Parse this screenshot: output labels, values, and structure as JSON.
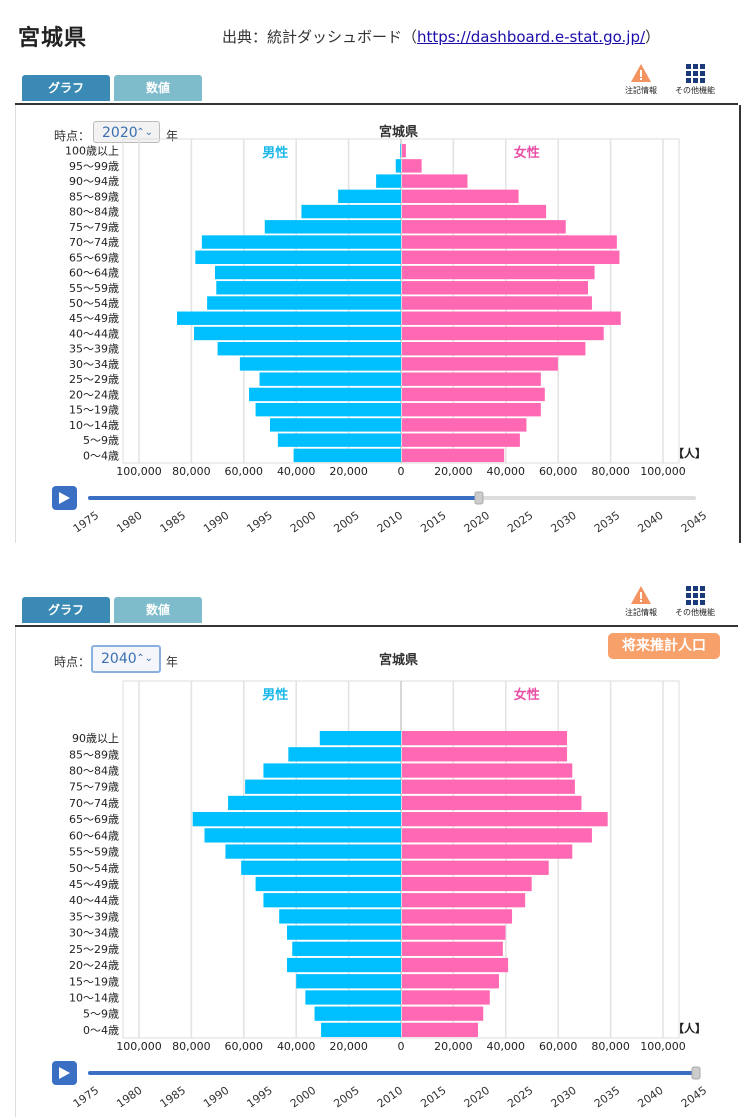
{
  "header": {
    "prefecture": "宮城県",
    "source_prefix": "出典：統計ダッシュボード（",
    "source_link": "https://dashboard.e-stat.go.jp/",
    "source_suffix": "）"
  },
  "ui": {
    "tab_graph": "グラフ",
    "tab_values": "数値",
    "tool_notes": "注記情報",
    "tool_other": "その他機能",
    "time_label": "時点：",
    "year_suffix": "年",
    "future_badge": "将来推計人口",
    "unit_label": "【人】",
    "male_label": "男性",
    "female_label": "女性"
  },
  "colors": {
    "male": "#00bfff",
    "female": "#ff69b4",
    "male_text": "#1ab8e8",
    "female_text": "#e84fa5",
    "slider": "#3a6fc4",
    "tab_active": "#3b8ab5",
    "tab_inactive": "#7fbccb",
    "badge": "#f7a06a"
  },
  "slider_years": [
    "1975",
    "1980",
    "1985",
    "1990",
    "1995",
    "2000",
    "2005",
    "2010",
    "2015",
    "2020",
    "2025",
    "2030",
    "2035",
    "2040",
    "2045"
  ],
  "x_ticks": [
    "100,000",
    "80,000",
    "60,000",
    "40,000",
    "20,000",
    "0",
    "20,000",
    "40,000",
    "60,000",
    "80,000",
    "100,000"
  ],
  "chart_data": [
    {
      "type": "bar",
      "title": "宮城県",
      "year": "2020",
      "slider_position": 0.643,
      "categories": [
        "100歳以上",
        "95～99歳",
        "90～94歳",
        "85～89歳",
        "80～84歳",
        "75～79歳",
        "70～74歳",
        "65～69歳",
        "60～64歳",
        "55～59歳",
        "50～54歳",
        "45～49歳",
        "40～44歳",
        "35～39歳",
        "30～34歳",
        "25～29歳",
        "20～24歳",
        "15～19歳",
        "10～14歳",
        "5～9歳",
        "0～4歳"
      ],
      "series": [
        {
          "name": "男性",
          "values": [
            300,
            2000,
            9500,
            24000,
            38000,
            52000,
            76000,
            78500,
            71000,
            70500,
            74000,
            85500,
            79000,
            70000,
            61500,
            54000,
            58000,
            55500,
            50000,
            47000,
            41000
          ]
        },
        {
          "name": "女性",
          "values": [
            1500,
            7500,
            25000,
            44500,
            55000,
            62500,
            82000,
            83000,
            73500,
            71000,
            72500,
            83500,
            77000,
            70000,
            59500,
            53000,
            54500,
            53000,
            47500,
            45000,
            39000
          ]
        }
      ],
      "xlim": [
        -100000,
        100000
      ]
    },
    {
      "type": "bar",
      "title": "宮城県",
      "year": "2040",
      "slider_position": 1.0,
      "categories": [
        "90歳以上",
        "85～89歳",
        "80～84歳",
        "75～79歳",
        "70～74歳",
        "65～69歳",
        "60～64歳",
        "55～59歳",
        "50～54歳",
        "45～49歳",
        "40～44歳",
        "35～39歳",
        "30～34歳",
        "25～29歳",
        "20～24歳",
        "15～19歳",
        "10～14歳",
        "5～9歳",
        "0～4歳"
      ],
      "series": [
        {
          "name": "男性",
          "values": [
            31000,
            43000,
            52500,
            59500,
            66000,
            79500,
            75000,
            67000,
            61000,
            55500,
            52500,
            46500,
            43500,
            41500,
            43500,
            40000,
            36500,
            33000,
            30500
          ]
        },
        {
          "name": "女性",
          "values": [
            63000,
            63000,
            65000,
            66000,
            68500,
            78500,
            72500,
            65000,
            56000,
            49500,
            47000,
            42000,
            39500,
            38500,
            40500,
            37000,
            33500,
            31000,
            29000
          ]
        }
      ],
      "xlim": [
        -100000,
        100000
      ]
    }
  ]
}
